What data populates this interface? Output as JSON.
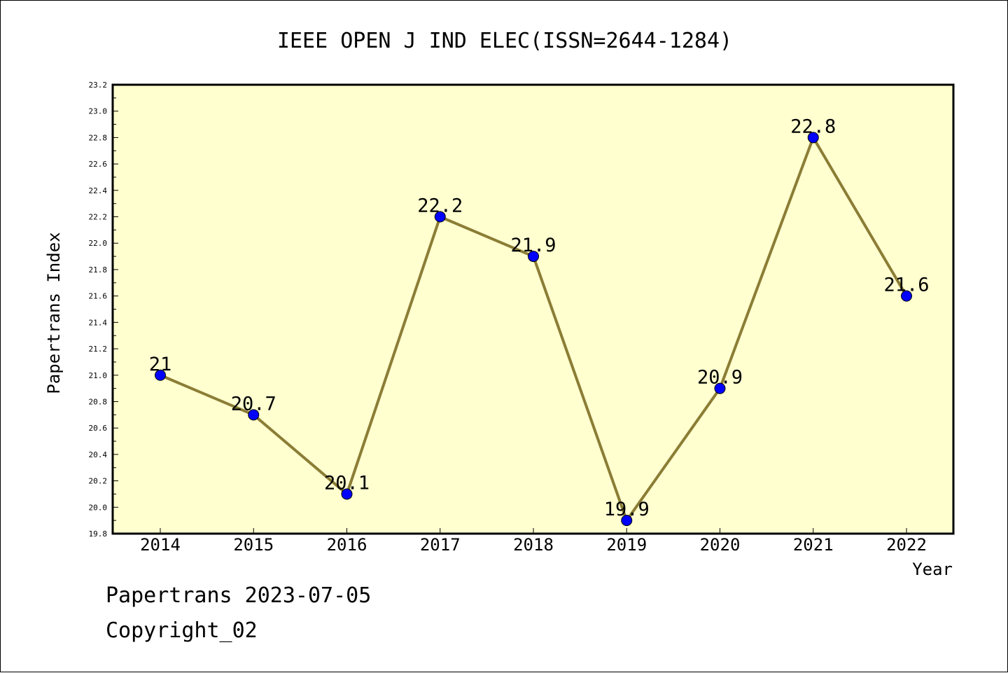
{
  "chart_data": {
    "type": "line",
    "title": "IEEE OPEN J IND ELEC(ISSN=2644-1284)",
    "xlabel": "Year",
    "ylabel": "Papertrans Index",
    "categories": [
      "2014",
      "2015",
      "2016",
      "2017",
      "2018",
      "2019",
      "2020",
      "2021",
      "2022"
    ],
    "values": [
      21,
      20.7,
      20.1,
      22.2,
      21.9,
      19.9,
      20.9,
      22.8,
      21.6
    ],
    "data_labels": [
      "21",
      "20.7",
      "20.1",
      "22.2",
      "21.9",
      "19.9",
      "20.9",
      "22.8",
      "21.6"
    ],
    "y_ticks": [
      "19.8",
      "20.0",
      "20.2",
      "20.4",
      "20.6",
      "20.8",
      "21.0",
      "21.2",
      "21.4",
      "21.6",
      "21.8",
      "22.0",
      "22.2",
      "22.4",
      "22.6",
      "22.8",
      "23.0",
      "23.2"
    ],
    "ylim": [
      19.8,
      23.2
    ],
    "grid": false,
    "colors": {
      "plot_background": "#ffffd0",
      "line": "#8b7d35",
      "marker": "#0000ff"
    }
  },
  "footer": {
    "line1": "Papertrans 2023-07-05",
    "line2": "Copyright_02"
  }
}
